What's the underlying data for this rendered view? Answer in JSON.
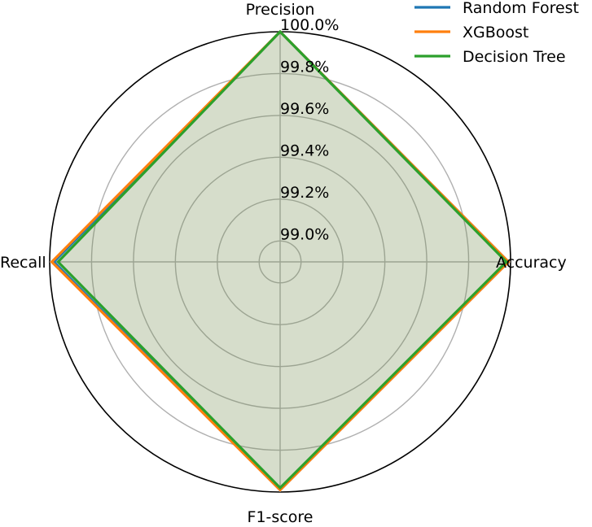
{
  "chart_data": {
    "type": "radar",
    "axes": [
      "Precision",
      "Recall",
      "F1-score",
      "Accuracy"
    ],
    "rlim": [
      98.9,
      100.0
    ],
    "radial_ticks": [
      99.0,
      99.2,
      99.4,
      99.6,
      99.8,
      100.0
    ],
    "radial_tick_labels": [
      "99.0%",
      "99.2%",
      "99.4%",
      "99.6%",
      "99.8%",
      "100.0%"
    ],
    "grid": true,
    "legend_position": "top-right",
    "series": [
      {
        "name": "Random Forest",
        "color": "#1f77b4",
        "values": [
          100.0,
          99.98,
          99.99,
          99.99
        ]
      },
      {
        "name": "XGBoost",
        "color": "#ff7f0e",
        "values": [
          100.0,
          99.99,
          99.99,
          99.99
        ]
      },
      {
        "name": "Decision Tree",
        "color": "#2ca02c",
        "values": [
          100.0,
          99.96,
          99.98,
          99.98
        ]
      }
    ],
    "fill_color": "#d6ddcb"
  }
}
